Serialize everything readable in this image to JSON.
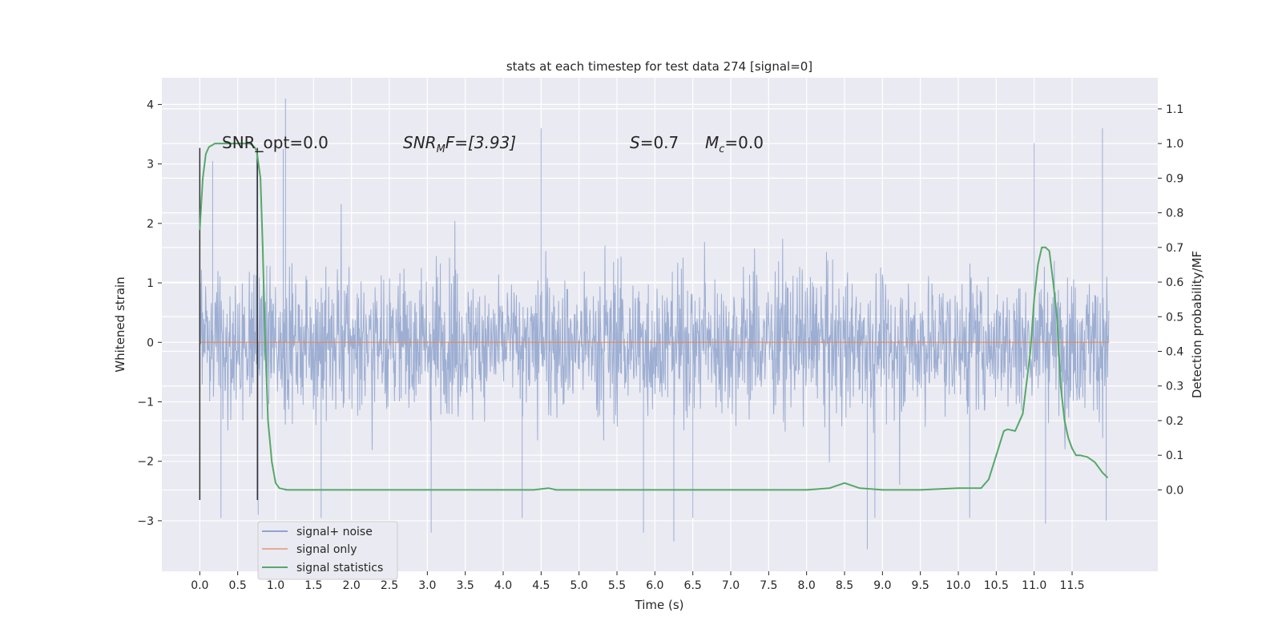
{
  "chart_data": {
    "type": "line",
    "title": "stats at each timestep for test data 274 [signal=0]",
    "xlabel": "Time (s)",
    "ylabel": "Whitened strain",
    "ylabel_right": "Detection probability/MF",
    "xlim": [
      -0.5,
      12.63
    ],
    "ylim": [
      -3.85,
      4.45
    ],
    "ylim_right": [
      -0.235,
      1.19
    ],
    "grid": true,
    "x_ticks": [
      0.0,
      0.5,
      1.0,
      1.5,
      2.0,
      2.5,
      3.0,
      3.5,
      4.0,
      4.5,
      5.0,
      5.5,
      6.0,
      6.5,
      7.0,
      7.5,
      8.0,
      8.5,
      9.0,
      9.5,
      10.0,
      10.5,
      11.0,
      11.5
    ],
    "x_tick_labels": [
      "0.0",
      "0.5",
      "1.0",
      "1.5",
      "2.0",
      "2.5",
      "3.0",
      "3.5",
      "4.0",
      "4.5",
      "5.0",
      "5.5",
      "6.0",
      "6.5",
      "7.0",
      "7.5",
      "8.0",
      "8.5",
      "9.0",
      "9.5",
      "10.0",
      "10.5",
      "11.0",
      "11.5"
    ],
    "y_ticks": [
      -3,
      -2,
      -1,
      0,
      1,
      2,
      3,
      4
    ],
    "y_tick_labels": [
      "−3",
      "−2",
      "−1",
      "0",
      "1",
      "2",
      "3",
      "4"
    ],
    "y_ticks_right": [
      0.0,
      0.1,
      0.2,
      0.3,
      0.4,
      0.5,
      0.6,
      0.7,
      0.8,
      0.9,
      1.0,
      1.1
    ],
    "y_tick_labels_right": [
      "0.0",
      "0.1",
      "0.2",
      "0.3",
      "0.4",
      "0.5",
      "0.6",
      "0.7",
      "0.8",
      "0.9",
      "1.0",
      "1.1"
    ],
    "legend": {
      "placement": "lower-left",
      "entries": [
        "signal+ noise",
        "signal only",
        "signal statistics"
      ]
    },
    "series": [
      {
        "name": "signal+ noise",
        "color": "#8fa3cc",
        "axis": "left",
        "style": "dense noise trace, approx. within -2.4..2.4 with spikes",
        "x_range": [
          0.0,
          11.99
        ],
        "spikes": [
          {
            "x": 1.13,
            "y": 4.1
          },
          {
            "x": 11.9,
            "y": 3.6
          },
          {
            "x": 4.5,
            "y": 3.6
          },
          {
            "x": 11.0,
            "y": 3.35
          },
          {
            "x": 0.75,
            "y": 3.2
          },
          {
            "x": 1.1,
            "y": 3.25
          },
          {
            "x": 0.17,
            "y": 3.05
          },
          {
            "x": 0.77,
            "y": -2.9
          },
          {
            "x": 8.8,
            "y": -3.48
          },
          {
            "x": 6.25,
            "y": -3.35
          },
          {
            "x": 3.05,
            "y": -3.2
          },
          {
            "x": 5.85,
            "y": -3.2
          },
          {
            "x": 11.95,
            "y": -3.0
          },
          {
            "x": 11.15,
            "y": -3.05
          },
          {
            "x": 8.9,
            "y": -2.95
          },
          {
            "x": 6.5,
            "y": -2.95
          },
          {
            "x": 10.15,
            "y": -2.95
          },
          {
            "x": 4.25,
            "y": -2.95
          },
          {
            "x": 1.6,
            "y": -2.95
          },
          {
            "x": 0.28,
            "y": -2.95
          }
        ]
      },
      {
        "name": "signal only",
        "color": "#dd8452",
        "axis": "left",
        "x": [
          0.0,
          11.99
        ],
        "y": [
          0.0,
          0.0
        ]
      },
      {
        "name": "signal statistics",
        "color": "#55a868",
        "axis": "right",
        "x": [
          0.0,
          0.04,
          0.08,
          0.12,
          0.2,
          0.3,
          0.4,
          0.5,
          0.6,
          0.66,
          0.72,
          0.75,
          0.8,
          0.83,
          0.86,
          0.9,
          0.95,
          1.0,
          1.05,
          1.15,
          1.5,
          2.0,
          3.0,
          4.0,
          4.4,
          4.6,
          4.7,
          5.0,
          6.0,
          6.5,
          7.5,
          8.0,
          8.3,
          8.5,
          8.7,
          9.0,
          9.5,
          10.0,
          10.3,
          10.4,
          10.5,
          10.6,
          10.65,
          10.75,
          10.85,
          10.95,
          11.0,
          11.05,
          11.1,
          11.15,
          11.2,
          11.25,
          11.3,
          11.35,
          11.4,
          11.45,
          11.5,
          11.55,
          11.6,
          11.7,
          11.8,
          11.9,
          11.97
        ],
        "y": [
          0.75,
          0.9,
          0.97,
          0.99,
          1.0,
          1.0,
          1.0,
          1.0,
          1.0,
          1.0,
          0.99,
          0.98,
          0.9,
          0.7,
          0.45,
          0.2,
          0.08,
          0.02,
          0.005,
          0.0,
          0.0,
          0.0,
          0.0,
          0.0,
          0.0,
          0.005,
          0.0,
          0.0,
          0.0,
          0.0,
          0.0,
          0.0,
          0.005,
          0.02,
          0.005,
          0.0,
          0.0,
          0.005,
          0.005,
          0.03,
          0.1,
          0.17,
          0.175,
          0.17,
          0.22,
          0.4,
          0.55,
          0.65,
          0.7,
          0.7,
          0.69,
          0.6,
          0.5,
          0.3,
          0.2,
          0.15,
          0.12,
          0.1,
          0.1,
          0.095,
          0.08,
          0.05,
          0.035
        ]
      }
    ],
    "vlines": [
      {
        "x": 0.0,
        "y_range": [
          -2.65,
          3.27
        ],
        "color": "#333333"
      },
      {
        "x": 0.76,
        "y_range": [
          -2.65,
          3.27
        ],
        "color": "#333333"
      }
    ],
    "annotations": {
      "snr_opt": "SNR_opt=0.0",
      "snr_mf_name": "SNR",
      "snr_mf_sub": "M",
      "snr_mf_rest": "F=[3.93]",
      "s_name": "S",
      "s_rest": "=0.7",
      "mc_name": "M",
      "mc_sub": "c",
      "mc_rest": "=0.0"
    }
  }
}
